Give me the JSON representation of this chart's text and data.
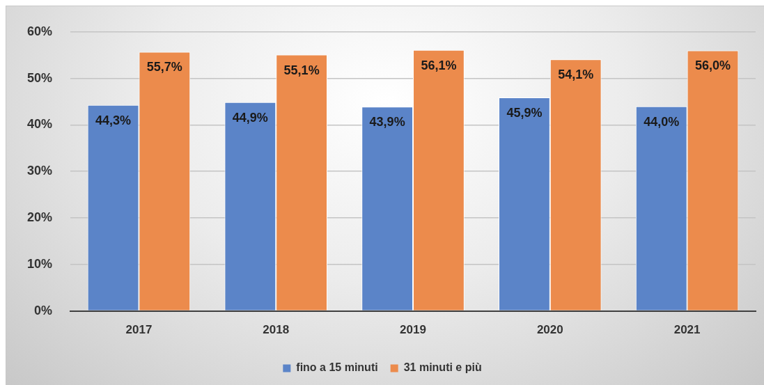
{
  "chart_data": {
    "type": "bar",
    "categories": [
      "2017",
      "2018",
      "2019",
      "2020",
      "2021"
    ],
    "series": [
      {
        "name": "fino a 15 minuti",
        "color": "#5b84c8",
        "values": [
          44.3,
          44.9,
          43.9,
          45.9,
          44.0
        ],
        "value_labels": [
          "44,3%",
          "44,9%",
          "43,9%",
          "45,9%",
          "44,0%"
        ]
      },
      {
        "name": "31 minuti e più",
        "color": "#ec8b4c",
        "values": [
          55.7,
          55.1,
          56.1,
          54.1,
          56.0
        ],
        "value_labels": [
          "55,7%",
          "55,1%",
          "56,1%",
          "54,1%",
          "56,0%"
        ]
      }
    ],
    "ylim": [
      0,
      60
    ],
    "yticks": [
      {
        "value": 0,
        "label": "0%"
      },
      {
        "value": 10,
        "label": "10%"
      },
      {
        "value": 20,
        "label": "20%"
      },
      {
        "value": 30,
        "label": "30%"
      },
      {
        "value": 40,
        "label": "40%"
      },
      {
        "value": 50,
        "label": "50%"
      },
      {
        "value": 60,
        "label": "60%"
      }
    ],
    "grid": "y",
    "legend": "bottom"
  }
}
